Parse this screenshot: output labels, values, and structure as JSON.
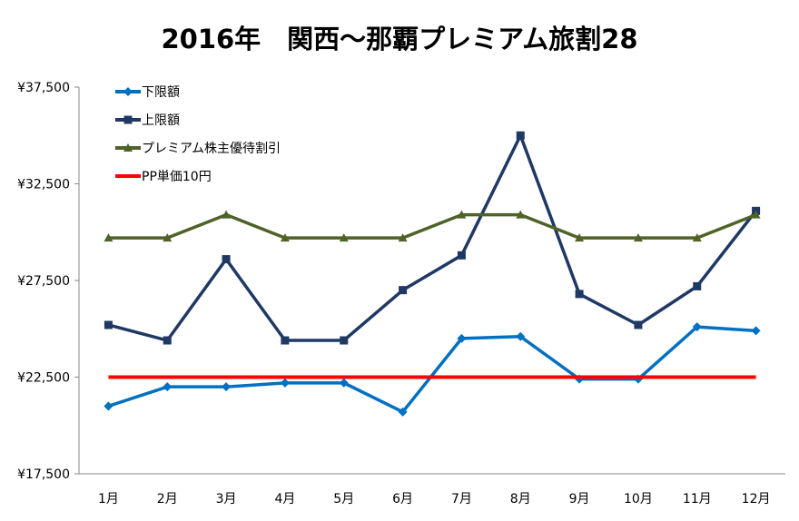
{
  "chart_data": {
    "type": "line",
    "title": "2016年　関西～那覇プレミアム旅割28",
    "xlabel": "",
    "ylabel": "",
    "categories": [
      "1月",
      "2月",
      "3月",
      "4月",
      "5月",
      "6月",
      "7月",
      "8月",
      "9月",
      "10月",
      "11月",
      "12月"
    ],
    "ylim": [
      17500,
      37500
    ],
    "yticks": [
      17500,
      22500,
      27500,
      32500,
      37500
    ],
    "ytick_labels": [
      "¥17,500",
      "¥22,500",
      "¥27,500",
      "¥32,500",
      "¥37,500"
    ],
    "grid": false,
    "legend_position": "top-left",
    "series": [
      {
        "name": "下限額",
        "color": "#0070c0",
        "marker": "diamond",
        "values": [
          21000,
          22000,
          22000,
          22200,
          22200,
          20700,
          24500,
          24600,
          22400,
          22400,
          25100,
          24900
        ]
      },
      {
        "name": "上限額",
        "color": "#1f3864",
        "marker": "square",
        "values": [
          25200,
          24400,
          28600,
          24400,
          24400,
          27000,
          28800,
          35000,
          26800,
          25200,
          27200,
          31100
        ]
      },
      {
        "name": "プレミアム株主優待割引",
        "color": "#4f6228",
        "marker": "triangle",
        "values": [
          29700,
          29700,
          30900,
          29700,
          29700,
          29700,
          30900,
          30900,
          29700,
          29700,
          29700,
          30900
        ]
      },
      {
        "name": "PP単価10円",
        "color": "#ff0000",
        "marker": "none",
        "values": [
          22500,
          22500,
          22500,
          22500,
          22500,
          22500,
          22500,
          22500,
          22500,
          22500,
          22500,
          22500
        ]
      }
    ]
  }
}
